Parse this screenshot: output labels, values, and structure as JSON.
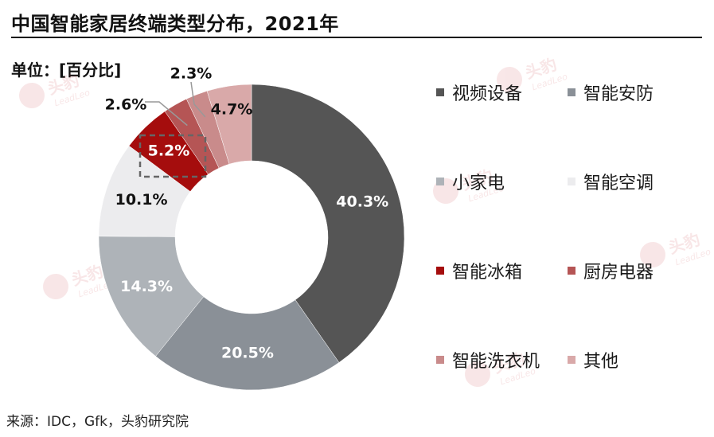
{
  "title": "中国智能家居终端类型分布，2021年",
  "unit_label": "单位：[百分比]",
  "source": "来源：IDC，Gfk，头豹研究院",
  "watermark": "头豹 LeadLeo",
  "chart_data": {
    "type": "pie",
    "variant": "donut",
    "unit": "%",
    "categories": [
      "视频设备",
      "智能安防",
      "小家电",
      "智能空调",
      "智能冰箱",
      "厨房电器",
      "智能洗衣机",
      "其他"
    ],
    "values": [
      40.3,
      20.5,
      14.3,
      10.1,
      5.2,
      2.6,
      2.3,
      4.7
    ],
    "labels": [
      "40.3%",
      "20.5%",
      "14.3%",
      "10.1%",
      "5.2%",
      "2.6%",
      "2.3%",
      "4.7%"
    ],
    "colors": [
      "#555555",
      "#8a9097",
      "#aeb3b8",
      "#ececee",
      "#a50d0d",
      "#b55555",
      "#c98b8b",
      "#d9a9a9"
    ],
    "legend_position": "right",
    "highlighted_category": "智能冰箱"
  }
}
